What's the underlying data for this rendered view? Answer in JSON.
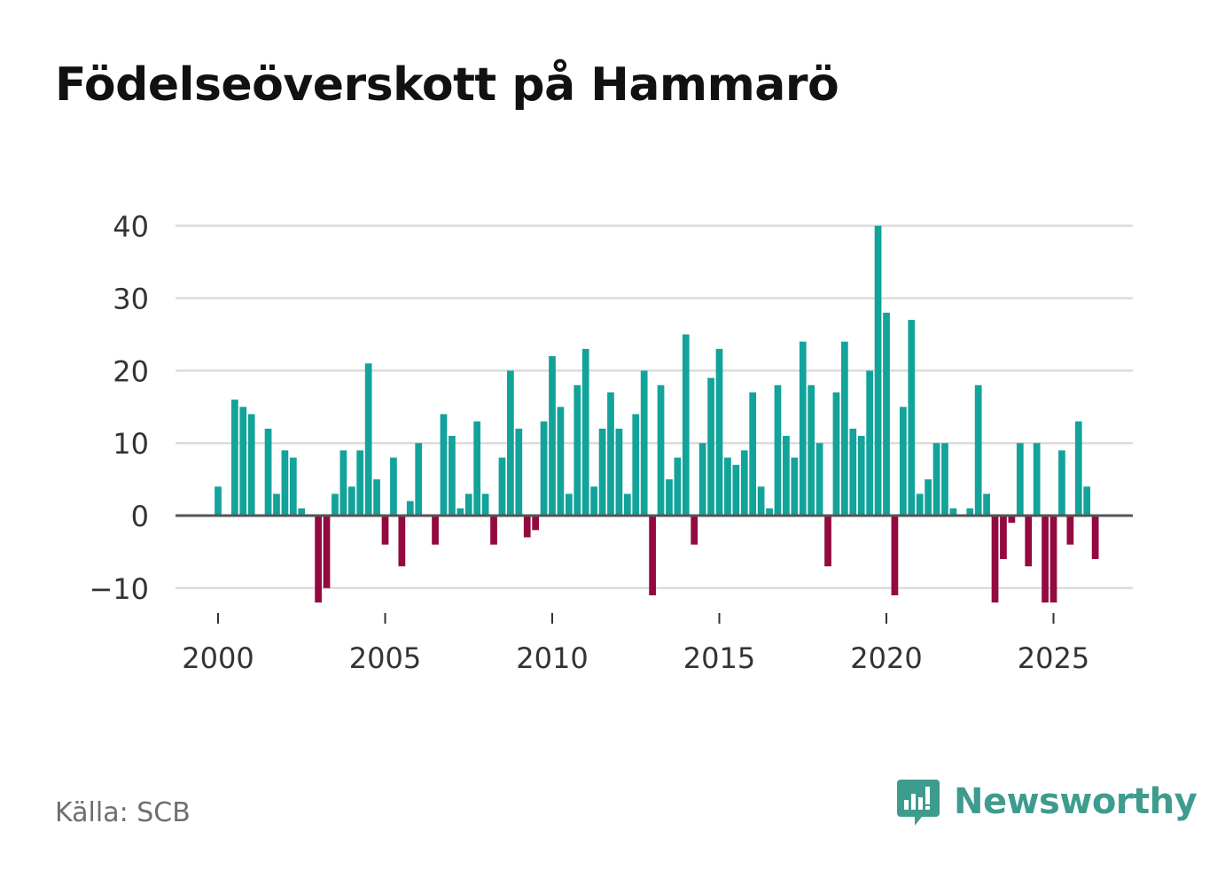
{
  "chart_data": {
    "type": "bar",
    "title": "Födelseöverskott på Hammarö",
    "xlabel": "",
    "ylabel": "",
    "frequency": "quarterly",
    "x_start": 2000.0,
    "x_step": 0.25,
    "xlim": [
      1999.25,
      2027.25
    ],
    "ylim": [
      -12,
      40
    ],
    "yticks": [
      -10,
      0,
      10,
      20,
      30,
      40
    ],
    "ytick_labels": [
      "−10",
      "0",
      "10",
      "20",
      "30",
      "40"
    ],
    "xticks": [
      2000,
      2005,
      2010,
      2015,
      2020,
      2025
    ],
    "xtick_labels": [
      "2000",
      "2005",
      "2010",
      "2015",
      "2020",
      "2025"
    ],
    "values": [
      4,
      0,
      16,
      15,
      14,
      0,
      12,
      3,
      9,
      8,
      1,
      0,
      -12,
      -10,
      3,
      9,
      4,
      9,
      21,
      5,
      -4,
      8,
      -7,
      2,
      10,
      0,
      -4,
      14,
      11,
      1,
      3,
      13,
      3,
      -4,
      8,
      20,
      12,
      -3,
      -2,
      13,
      22,
      15,
      3,
      18,
      23,
      4,
      12,
      17,
      12,
      3,
      14,
      20,
      -11,
      18,
      5,
      8,
      25,
      -4,
      10,
      19,
      23,
      8,
      7,
      9,
      17,
      4,
      1,
      18,
      11,
      8,
      24,
      18,
      10,
      -7,
      17,
      24,
      12,
      11,
      20,
      40,
      28,
      -11,
      15,
      27,
      3,
      5,
      10,
      10,
      1,
      0,
      1,
      18,
      3,
      -12,
      -6,
      -1,
      10,
      -7,
      10,
      -12,
      -12,
      9,
      -4,
      13,
      4,
      -6
    ],
    "positive_color": "#12a39a",
    "negative_color": "#930940",
    "grid": true,
    "legend": "none"
  },
  "footer": {
    "source": "Källa: SCB",
    "brand": "Newsworthy",
    "brand_color": "#3e9c8f",
    "brand_icon": "bar-chart-speech-bubble-icon"
  }
}
